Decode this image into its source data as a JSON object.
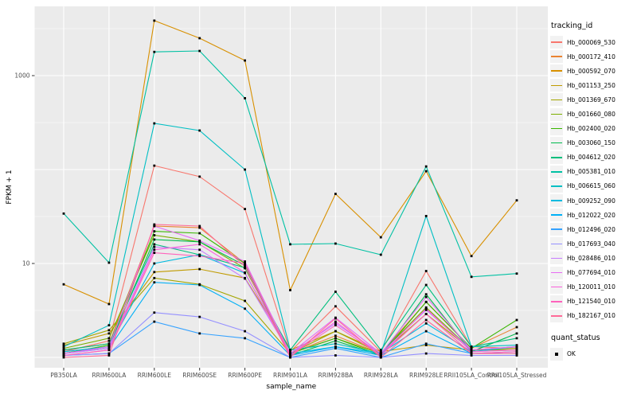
{
  "figure": {
    "y_axis_title": "FPKM + 1",
    "x_axis_title": "sample_name",
    "legend": {
      "tracking_title": "tracking_id",
      "quant_title": "quant_status",
      "quant_items": [
        {
          "label": "OK",
          "symbol": "black-square"
        }
      ]
    }
  },
  "chart_data": {
    "type": "line",
    "title": "",
    "xlabel": "sample_name",
    "ylabel": "FPKM + 1",
    "x_type": "categorical",
    "y_scale": "log10",
    "ylim": [
      1,
      5500
    ],
    "grid": "on",
    "legend_position": "right",
    "point_shape": "filled-black-square",
    "panel_color": "#EBEBEB",
    "gridline_color": "#FFFFFF",
    "tick_label_color": "#4D4D4D",
    "y_tick_labels": [
      {
        "value": 10,
        "label": "10"
      },
      {
        "value": 1000,
        "label": "1000"
      }
    ],
    "major_gridlines": [
      1,
      10,
      100,
      1000
    ],
    "minor_gridlines": [
      3.162,
      31.62,
      316.2,
      3162
    ],
    "categories": [
      "PB350LA",
      "RRIM600LA",
      "RRIM600LE",
      "RRIM600SE",
      "RRIM600PE",
      "RRIM901LA",
      "RRIM928BA",
      "RRIM928LA",
      "RRIM928LE",
      "RRII105LA_Control",
      "RRII105LA_Stressed"
    ],
    "series": [
      {
        "name": "Hb_000069_530",
        "color": "#F8766D",
        "values": [
          1.15,
          1.5,
          110,
          84,
          38,
          1.15,
          3.5,
          1.15,
          8.3,
          1.3,
          1.25
        ]
      },
      {
        "name": "Hb_000172_410",
        "color": "#EA8331",
        "values": [
          1.2,
          1.4,
          25,
          24,
          10,
          1.1,
          1.7,
          1.1,
          3.9,
          1.25,
          2.1
        ]
      },
      {
        "name": "Hb_000592_070",
        "color": "#D89000",
        "values": [
          6,
          3.7,
          3850,
          2500,
          1450,
          5.2,
          55,
          19,
          96,
          12,
          47
        ]
      },
      {
        "name": "Hb_001153_250",
        "color": "#C09B00",
        "values": [
          1.35,
          1.8,
          8.1,
          8.7,
          7,
          1.2,
          1.9,
          1.15,
          1.35,
          1.2,
          1.3
        ]
      },
      {
        "name": "Hb_001369_670",
        "color": "#A3A500",
        "values": [
          1.4,
          1.95,
          7,
          6,
          4,
          1.1,
          1.9,
          1.1,
          2.9,
          1.2,
          1.25
        ]
      },
      {
        "name": "Hb_001660_080",
        "color": "#7CAE00",
        "values": [
          1.25,
          1.6,
          20,
          17,
          8.9,
          1.1,
          1.6,
          1.1,
          3.4,
          1.2,
          1.2
        ]
      },
      {
        "name": "Hb_002400_020",
        "color": "#39B600",
        "values": [
          1.1,
          1.35,
          22,
          21,
          10,
          1.1,
          1.6,
          1.05,
          3.9,
          1.25,
          2.5
        ]
      },
      {
        "name": "Hb_003060_150",
        "color": "#00BB4E",
        "values": [
          1.1,
          1.3,
          18,
          17,
          9.5,
          1.05,
          1.5,
          1.05,
          4.7,
          1.15,
          1.8
        ]
      },
      {
        "name": "Hb_004612_020",
        "color": "#00BF7D",
        "values": [
          1.2,
          1.4,
          16,
          12.4,
          9,
          1.2,
          5,
          1.2,
          5.9,
          1.3,
          1.6
        ]
      },
      {
        "name": "Hb_005381_010",
        "color": "#00C1A3",
        "values": [
          34,
          10.2,
          1790,
          1830,
          575,
          16,
          16.3,
          12.4,
          108,
          7.2,
          7.8
        ]
      },
      {
        "name": "Hb_006615_060",
        "color": "#00BFC4",
        "values": [
          1.3,
          2.2,
          310,
          260,
          100,
          1.2,
          1.4,
          1.1,
          32,
          1.3,
          1.35
        ]
      },
      {
        "name": "Hb_009252_090",
        "color": "#00BAE0",
        "values": [
          1.15,
          1.3,
          10,
          12.4,
          7.9,
          1.1,
          1.3,
          1.1,
          2.3,
          1.15,
          1.3
        ]
      },
      {
        "name": "Hb_012022_020",
        "color": "#00B0F6",
        "values": [
          1.1,
          1.25,
          6.3,
          5.9,
          3.3,
          1.05,
          1.3,
          1.05,
          1.9,
          1.1,
          1.15
        ]
      },
      {
        "name": "Hb_012496_020",
        "color": "#35A2FF",
        "values": [
          1.05,
          1.1,
          2.4,
          1.8,
          1.6,
          1,
          1.25,
          1,
          1.4,
          1.1,
          1.1
        ]
      },
      {
        "name": "Hb_017693_040",
        "color": "#9590FF",
        "values": [
          1.05,
          1.1,
          3,
          2.7,
          1.9,
          1,
          1.05,
          1,
          1.1,
          1.05,
          1.05
        ]
      },
      {
        "name": "Hb_028486_010",
        "color": "#C77CFF",
        "values": [
          1.1,
          1.25,
          15,
          14,
          6.9,
          1.1,
          2.3,
          1.1,
          3.2,
          1.2,
          1.3
        ]
      },
      {
        "name": "Hb_077694_010",
        "color": "#E76BF3",
        "values": [
          1.1,
          1.3,
          25,
          17.5,
          10.5,
          1.1,
          2.65,
          1.1,
          4.4,
          1.2,
          1.3
        ]
      },
      {
        "name": "Hb_120011_010",
        "color": "#FA62DB",
        "values": [
          1.05,
          1.2,
          14,
          16,
          8,
          1.05,
          2.4,
          1.05,
          3.3,
          1.15,
          1.2
        ]
      },
      {
        "name": "Hb_121540_010",
        "color": "#FF62BC",
        "values": [
          1.05,
          1.2,
          13,
          12,
          10,
          1.05,
          2.2,
          1.05,
          2.9,
          1.1,
          1.15
        ]
      },
      {
        "name": "Hb_182167_010",
        "color": "#FF6A98",
        "values": [
          1,
          1.05,
          26,
          25,
          9.3,
          1,
          2.6,
          1,
          2.5,
          1.1,
          1.1
        ]
      }
    ]
  }
}
